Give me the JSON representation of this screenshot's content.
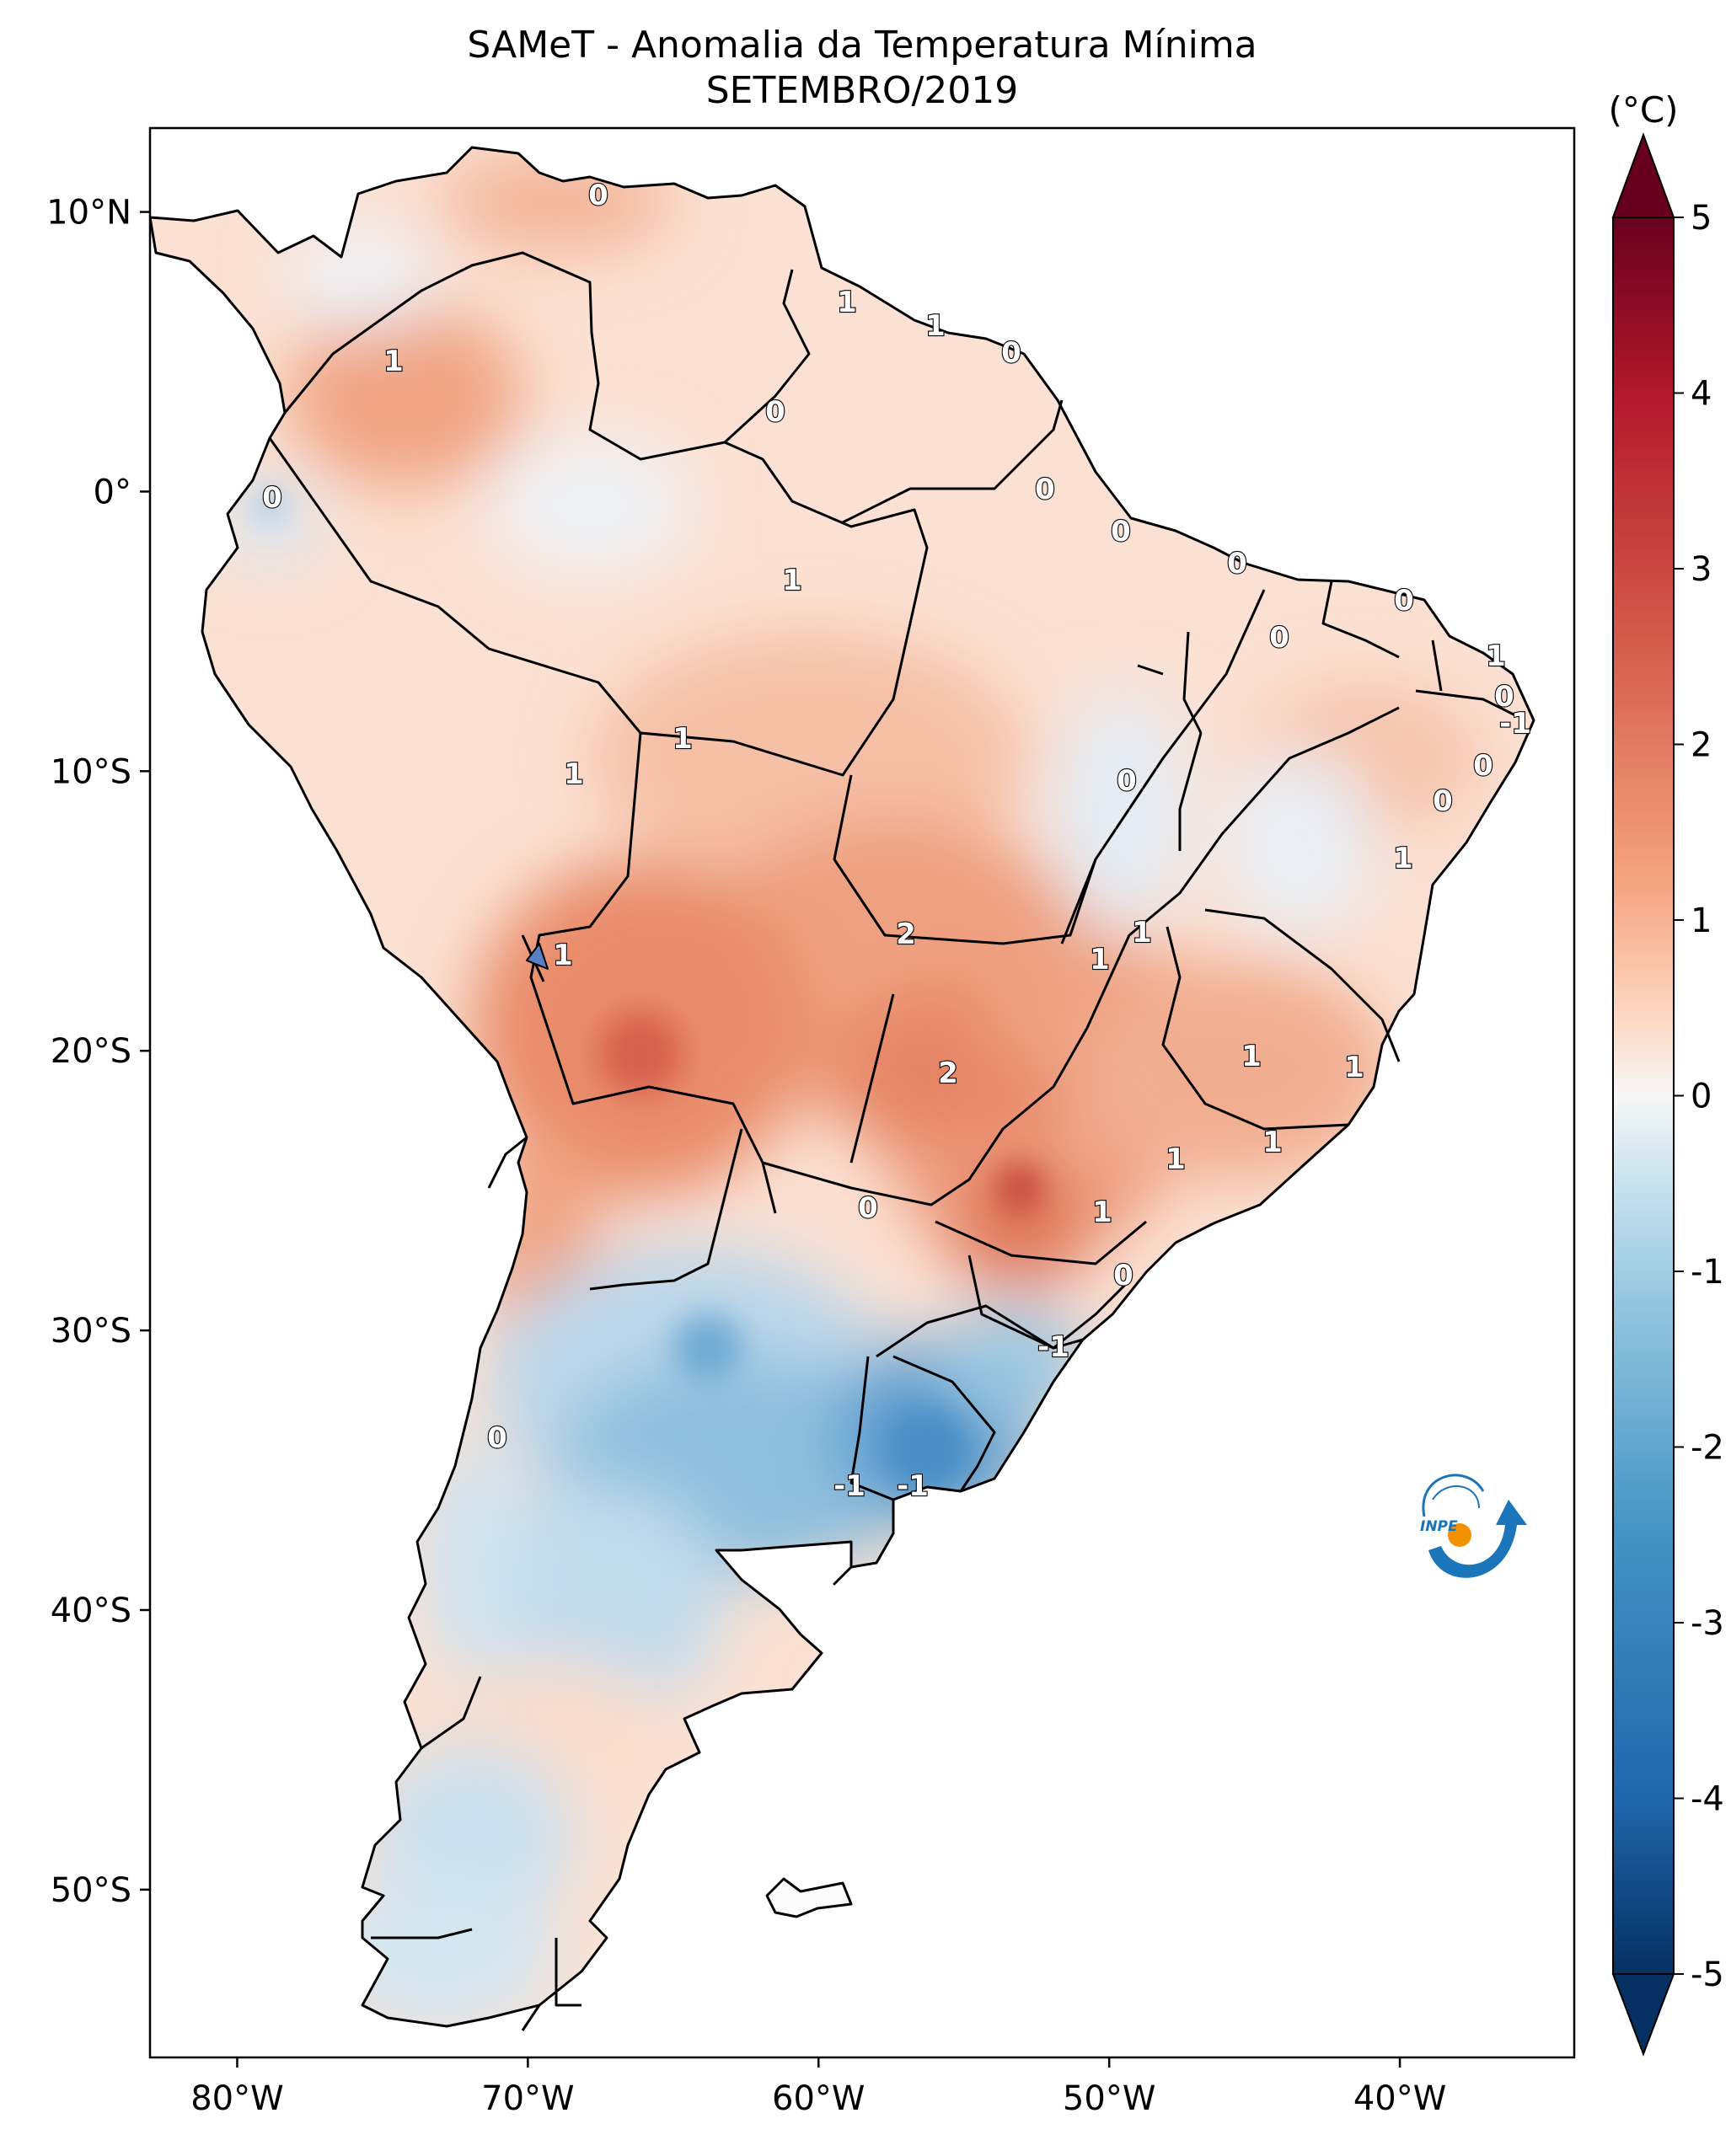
{
  "title": {
    "line1": "SAMeT - Anomalia da Temperatura Mínima",
    "line2": "SETEMBRO/2019"
  },
  "map": {
    "lon_range": [
      -83,
      -34
    ],
    "lat_range": [
      -56,
      13
    ],
    "lon_ticks": [
      "80°W",
      "70°W",
      "60°W",
      "50°W",
      "40°W"
    ],
    "lat_ticks": [
      "10°N",
      "0°",
      "10°S",
      "20°S",
      "30°S",
      "40°S",
      "50°S"
    ],
    "contour_labels": [
      "0",
      "1",
      "1",
      "0",
      "0",
      "1",
      "0",
      "1",
      "0",
      "0",
      "0",
      "0",
      "1",
      "0",
      "-1",
      "0",
      "0",
      "1",
      "0",
      "1",
      "1",
      "1",
      "2",
      "1",
      "1",
      "0",
      "2",
      "1",
      "1",
      "1",
      "1",
      "1",
      "0",
      "0",
      "-1",
      "0",
      "-1",
      "-1"
    ],
    "colors": {
      "warm_strong": "#b2182b",
      "warm": "#ef8a62",
      "warm_light": "#fddbc7",
      "neutral": "#f7f7f7",
      "cool_light": "#d1e5f0",
      "cool": "#67a9cf",
      "cool_strong": "#2166ac"
    }
  },
  "colorbar": {
    "unit": "(°C)",
    "ticks": [
      "5",
      "4",
      "3",
      "2",
      "1",
      "0",
      "-1",
      "-2",
      "-3",
      "-4",
      "-5"
    ],
    "min": -5,
    "max": 5
  },
  "logo": {
    "text": "INPE"
  }
}
